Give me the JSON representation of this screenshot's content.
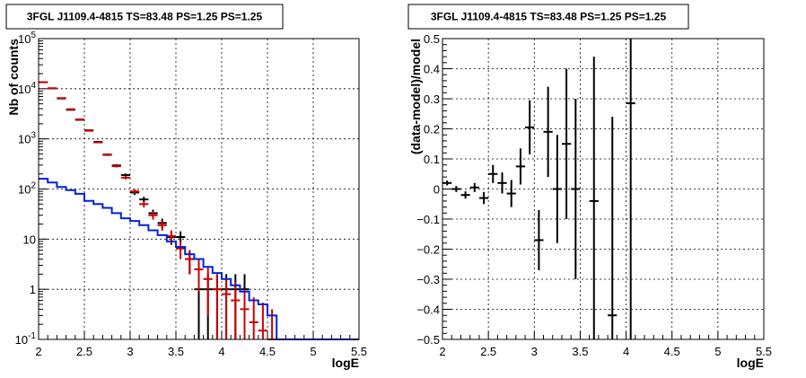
{
  "chart_data": [
    {
      "type": "line",
      "title": "3FGL J1109.4-4815 TS=83.48 PS=1.25 PS=1.25",
      "xlabel": "logE",
      "ylabel": "Nb of counts",
      "xlim": [
        2,
        5.5
      ],
      "ylim": [
        0.1,
        100000
      ],
      "yscale": "log",
      "grid": true,
      "x_ticks": [
        "2",
        "2.5",
        "3",
        "3.5",
        "4",
        "4.5",
        "5",
        "5.5"
      ],
      "y_ticks": [
        "10^-1",
        "1",
        "10",
        "10^2",
        "10^3",
        "10^4",
        "10^5"
      ],
      "series": [
        {
          "color": "#000000",
          "style": "points-with-errors",
          "x": [
            2.05,
            2.15,
            2.25,
            2.35,
            2.45,
            2.55,
            2.65,
            2.75,
            2.85,
            2.95,
            3.05,
            3.15,
            3.25,
            3.35,
            3.45,
            3.55,
            3.65,
            3.75,
            3.85,
            3.95,
            4.05,
            4.15,
            4.25
          ],
          "y": [
            13500,
            10200,
            6400,
            3800,
            2400,
            1480,
            870,
            480,
            295,
            190,
            85,
            62,
            33,
            21,
            11,
            11,
            4,
            1,
            1,
            1,
            1,
            1,
            1
          ],
          "yerr": [
            116,
            101,
            80,
            62,
            49,
            38,
            29,
            22,
            17,
            14,
            9.2,
            7.9,
            5.7,
            4.6,
            3.3,
            3.3,
            2,
            1,
            1,
            1,
            1,
            1,
            1
          ]
        },
        {
          "color": "#cc0000",
          "style": "points-with-errors",
          "x": [
            2.05,
            2.15,
            2.25,
            2.35,
            2.45,
            2.55,
            2.65,
            2.75,
            2.85,
            2.95,
            3.05,
            3.15,
            3.25,
            3.35,
            3.45,
            3.55,
            3.65,
            3.75,
            3.85,
            3.95,
            4.05,
            4.15,
            4.25,
            4.35,
            4.45,
            4.55
          ],
          "y": [
            13500,
            10200,
            6500,
            3900,
            2450,
            1450,
            850,
            490,
            285,
            168,
            90,
            50,
            30,
            19,
            11.5,
            6.5,
            4,
            2.5,
            1.6,
            1,
            0.8,
            0.6,
            0.4,
            0.22,
            0.15,
            0.1
          ],
          "yerr": [
            116,
            101,
            81,
            62,
            50,
            38,
            29,
            22,
            17,
            13,
            9.5,
            7,
            5.5,
            4.3,
            3.4,
            2.5,
            2,
            1.6,
            1.3,
            1,
            0.9,
            0.8,
            0.6,
            0.47,
            0.39,
            0.3
          ]
        },
        {
          "color": "#0022dd",
          "style": "step",
          "x": [
            2.0,
            2.1,
            2.2,
            2.3,
            2.4,
            2.5,
            2.6,
            2.7,
            2.8,
            2.9,
            3.0,
            3.1,
            3.2,
            3.3,
            3.4,
            3.5,
            3.6,
            3.7,
            3.8,
            3.9,
            4.0,
            4.1,
            4.2,
            4.3,
            4.4,
            4.5,
            4.6,
            4.7,
            4.8,
            4.9,
            5.0,
            5.1,
            5.2,
            5.3,
            5.4
          ],
          "y": [
            160,
            135,
            110,
            95,
            80,
            58,
            50,
            42,
            33,
            26,
            23,
            19,
            15,
            12,
            9,
            7,
            5,
            4,
            2.8,
            2.1,
            1.6,
            1.2,
            0.9,
            0.6,
            0.5,
            0.3,
            0.1,
            0.1,
            0.1,
            0.1,
            0.1,
            0.1,
            0.1,
            0.1,
            0.1
          ]
        }
      ]
    },
    {
      "type": "scatter",
      "title": "3FGL J1109.4-4815 TS=83.48 PS=1.25 PS=1.25",
      "xlabel": "logE",
      "ylabel": "(data-model)/model",
      "xlim": [
        2,
        5.5
      ],
      "ylim": [
        -0.5,
        0.5
      ],
      "grid": true,
      "x_ticks": [
        "2",
        "2.5",
        "3",
        "3.5",
        "4",
        "4.5",
        "5",
        "5.5"
      ],
      "y_ticks": [
        "−0.5",
        "−0.4",
        "−0.3",
        "−0.2",
        "−0.1",
        "0",
        "0.1",
        "0.2",
        "0.3",
        "0.4",
        "0.5"
      ],
      "series": [
        {
          "color": "#000000",
          "style": "points-with-errors",
          "x": [
            2.05,
            2.15,
            2.25,
            2.35,
            2.45,
            2.55,
            2.65,
            2.75,
            2.85,
            2.95,
            3.05,
            3.15,
            3.25,
            3.35,
            3.45,
            3.65,
            3.85,
            4.05
          ],
          "y": [
            0.02,
            0.0,
            -0.02,
            0.005,
            -0.03,
            0.05,
            0.02,
            -0.015,
            0.075,
            0.205,
            -0.17,
            0.19,
            0.0,
            0.15,
            0.0,
            -0.04,
            -0.42,
            0.285
          ],
          "yerr": [
            0.008,
            0.01,
            0.012,
            0.015,
            0.02,
            0.03,
            0.035,
            0.045,
            0.06,
            0.09,
            0.1,
            0.15,
            0.18,
            0.25,
            0.3,
            0.48,
            0.66,
            0.8
          ]
        }
      ]
    }
  ]
}
